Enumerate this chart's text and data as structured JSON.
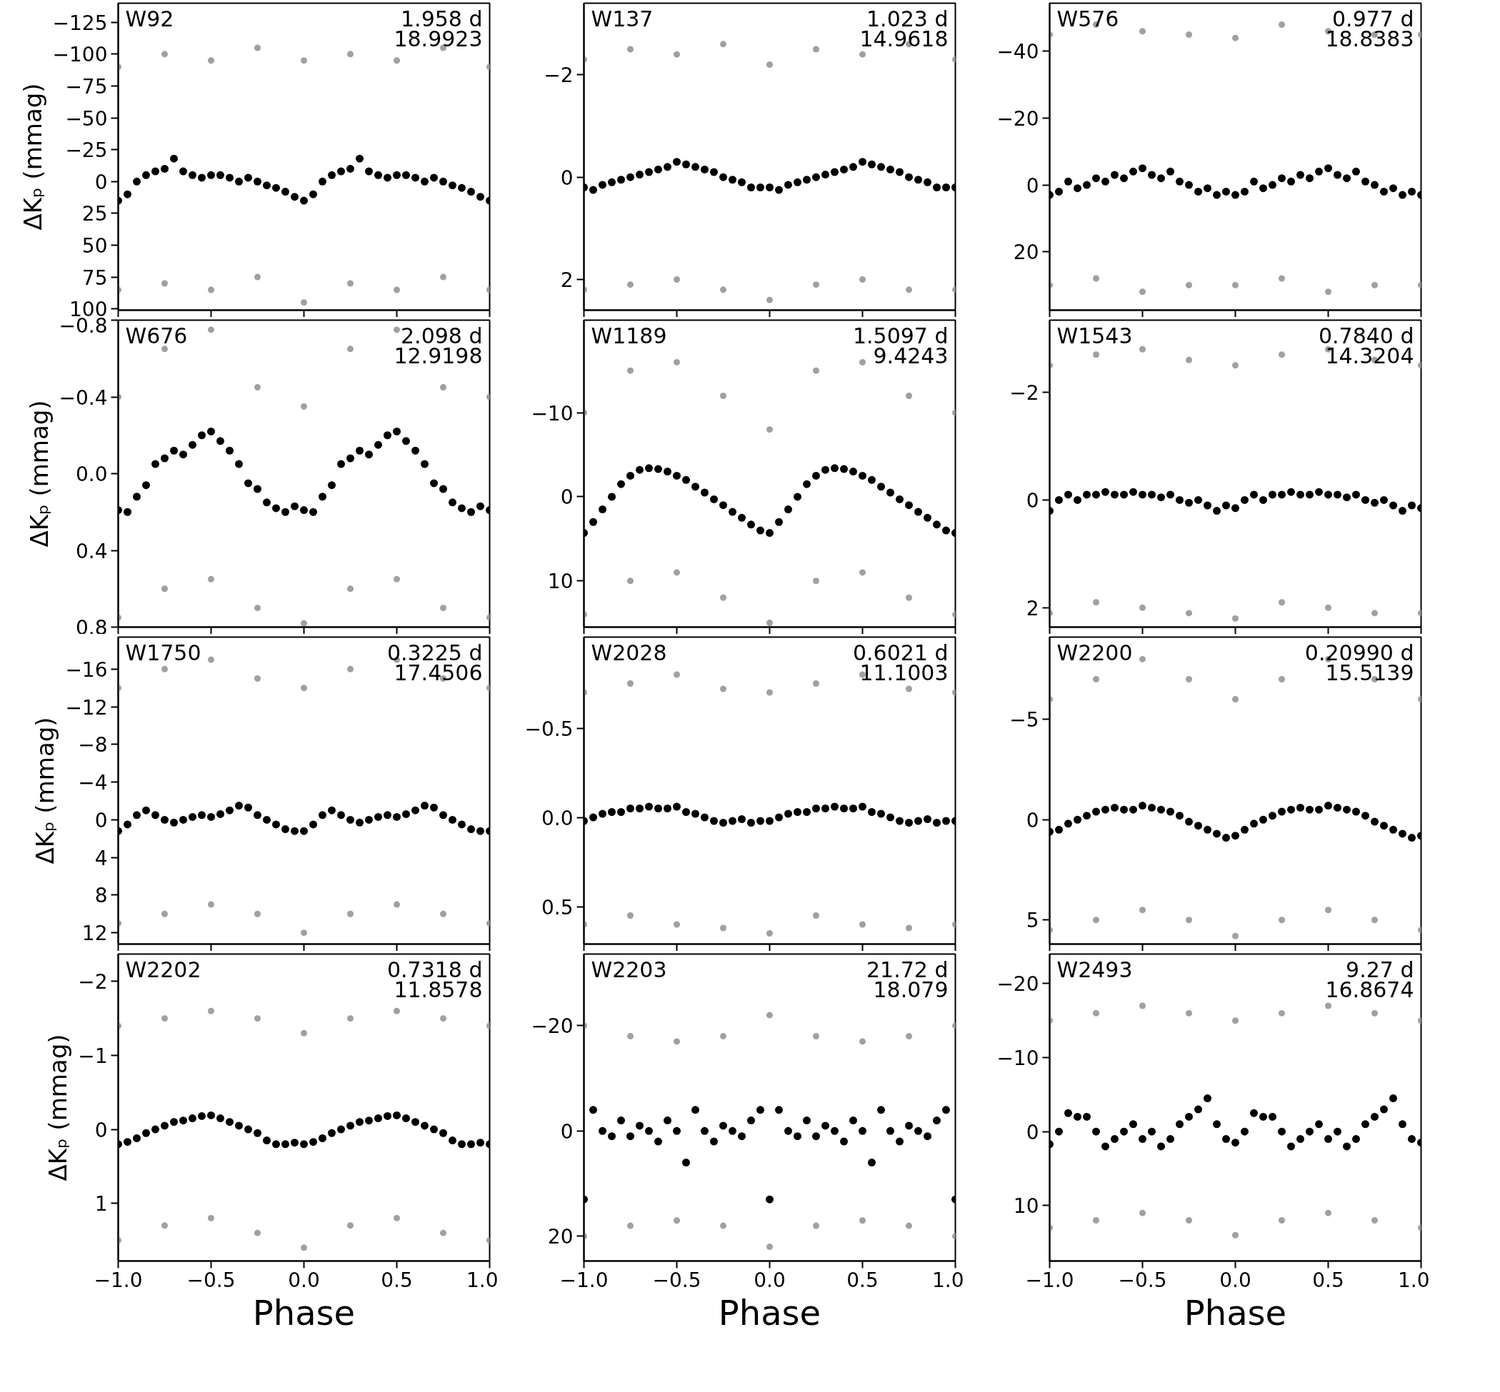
{
  "chart_data": [
    {
      "type": "scatter",
      "marker": "circle",
      "tick_labels": "y",
      "ylabel": "ΔKₚ (mmag)",
      "annotations": [
        "W92",
        "1.958 d",
        "18.9923"
      ],
      "xlim": [
        -1,
        1
      ],
      "ylim": [
        101,
        -140
      ],
      "xticks": [
        {
          "value": -1,
          "label": null
        },
        {
          "value": -0.5,
          "label": null
        },
        {
          "value": 0,
          "label": null
        },
        {
          "value": 0.5,
          "label": null
        },
        {
          "value": 1,
          "label": null
        }
      ],
      "yticks": [
        {
          "value": -125,
          "label": "−125"
        },
        {
          "value": -100,
          "label": "−100"
        },
        {
          "value": -75,
          "label": "−75"
        },
        {
          "value": -50,
          "label": "−50"
        },
        {
          "value": -25,
          "label": "−25"
        },
        0,
        25,
        50,
        75,
        100
      ],
      "series": [
        {
          "color": "#a0a0a0",
          "x": [
            -1,
            -0.75,
            -0.5,
            -0.25,
            0,
            0.25,
            0.5,
            0.75,
            1,
            -1,
            -0.75,
            -0.5,
            -0.25,
            0,
            0.25,
            0.5,
            0.75,
            1
          ],
          "values": [
            -90,
            -100,
            -95,
            -105,
            -95,
            -100,
            -95,
            -105,
            -90,
            85,
            80,
            85,
            75,
            95,
            80,
            85,
            75,
            85
          ]
        },
        {
          "color": "#000000",
          "x": [
            -1,
            -0.95,
            -0.9,
            -0.85,
            -0.8,
            -0.75,
            -0.7,
            -0.65,
            -0.6,
            -0.55,
            -0.5,
            -0.45,
            -0.4,
            -0.35,
            -0.3,
            -0.25,
            -0.2,
            -0.15,
            -0.1,
            -0.05,
            0,
            0.05,
            0.1,
            0.15,
            0.2,
            0.25,
            0.3,
            0.35,
            0.4,
            0.45,
            0.5,
            0.55,
            0.6,
            0.65,
            0.7,
            0.75,
            0.8,
            0.85,
            0.9,
            0.95,
            1
          ],
          "values": [
            15,
            10,
            0,
            -5,
            -8,
            -10,
            -18,
            -8,
            -5,
            -3,
            -5,
            -5,
            -3,
            0,
            -3,
            0,
            3,
            5,
            8,
            12,
            15,
            10,
            0,
            -5,
            -8,
            -10,
            -18,
            -8,
            -5,
            -3,
            -5,
            -5,
            -3,
            0,
            -3,
            0,
            3,
            5,
            8,
            12,
            15
          ]
        }
      ]
    },
    {
      "type": "scatter",
      "marker": "circle",
      "tick_labels": "y",
      "annotations": [
        "W137",
        "1.023 d",
        "14.9618"
      ],
      "xlim": [
        -1,
        1
      ],
      "ylim": [
        2.6,
        -3.4
      ],
      "xticks": [
        {
          "value": -1,
          "label": null
        },
        {
          "value": -0.5,
          "label": null
        },
        {
          "value": 0,
          "label": null
        },
        {
          "value": 0.5,
          "label": null
        },
        {
          "value": 1,
          "label": null
        }
      ],
      "yticks": [
        {
          "value": -2,
          "label": "−2"
        },
        0,
        2
      ],
      "series": [
        {
          "color": "#a0a0a0",
          "x": [
            -1,
            -0.75,
            -0.5,
            -0.25,
            0,
            0.25,
            0.5,
            0.75,
            1,
            -1,
            -0.75,
            -0.5,
            -0.25,
            0,
            0.25,
            0.5,
            0.75,
            1
          ],
          "values": [
            -2.3,
            -2.5,
            -2.4,
            -2.6,
            -2.2,
            -2.5,
            -2.4,
            -2.6,
            -2.3,
            2.2,
            2.1,
            2.0,
            2.2,
            2.4,
            2.1,
            2.0,
            2.2,
            2.2
          ]
        },
        {
          "color": "#000000",
          "x": [
            -1,
            -0.95,
            -0.9,
            -0.85,
            -0.8,
            -0.75,
            -0.7,
            -0.65,
            -0.6,
            -0.55,
            -0.5,
            -0.45,
            -0.4,
            -0.35,
            -0.3,
            -0.25,
            -0.2,
            -0.15,
            -0.1,
            -0.05,
            0,
            0.05,
            0.1,
            0.15,
            0.2,
            0.25,
            0.3,
            0.35,
            0.4,
            0.45,
            0.5,
            0.55,
            0.6,
            0.65,
            0.7,
            0.75,
            0.8,
            0.85,
            0.9,
            0.95,
            1
          ],
          "values": [
            0.2,
            0.25,
            0.15,
            0.1,
            0.05,
            0,
            -0.05,
            -0.1,
            -0.15,
            -0.2,
            -0.3,
            -0.25,
            -0.2,
            -0.15,
            -0.1,
            0,
            0.05,
            0.1,
            0.2,
            0.2,
            0.2,
            0.25,
            0.15,
            0.1,
            0.05,
            0,
            -0.05,
            -0.1,
            -0.15,
            -0.2,
            -0.3,
            -0.25,
            -0.2,
            -0.15,
            -0.1,
            0,
            0.05,
            0.1,
            0.2,
            0.2,
            0.2
          ]
        }
      ]
    },
    {
      "type": "scatter",
      "marker": "circle",
      "tick_labels": "y",
      "annotations": [
        "W576",
        "0.977 d",
        "18.8383"
      ],
      "xlim": [
        -1,
        1
      ],
      "ylim": [
        37.5,
        -54.4
      ],
      "xticks": [
        {
          "value": -1,
          "label": null
        },
        {
          "value": -0.5,
          "label": null
        },
        {
          "value": 0,
          "label": null
        },
        {
          "value": 0.5,
          "label": null
        },
        {
          "value": 1,
          "label": null
        }
      ],
      "yticks": [
        {
          "value": -40,
          "label": "−40"
        },
        {
          "value": -20,
          "label": "−20"
        },
        0,
        20
      ],
      "series": [
        {
          "color": "#a0a0a0",
          "x": [
            -1,
            -0.75,
            -0.5,
            -0.25,
            0,
            0.25,
            0.5,
            0.75,
            1,
            -1,
            -0.75,
            -0.5,
            -0.25,
            0,
            0.25,
            0.5,
            0.75,
            1
          ],
          "values": [
            -45,
            -48,
            -46,
            -45,
            -44,
            -48,
            -46,
            -45,
            -45,
            30,
            28,
            32,
            30,
            30,
            28,
            32,
            30,
            30
          ]
        },
        {
          "color": "#000000",
          "x": [
            -1,
            -0.95,
            -0.9,
            -0.85,
            -0.8,
            -0.75,
            -0.7,
            -0.65,
            -0.6,
            -0.55,
            -0.5,
            -0.45,
            -0.4,
            -0.35,
            -0.3,
            -0.25,
            -0.2,
            -0.15,
            -0.1,
            -0.05,
            0,
            0.05,
            0.1,
            0.15,
            0.2,
            0.25,
            0.3,
            0.35,
            0.4,
            0.45,
            0.5,
            0.55,
            0.6,
            0.65,
            0.7,
            0.75,
            0.8,
            0.85,
            0.9,
            0.95,
            1
          ],
          "values": [
            3,
            2,
            -1,
            1,
            0,
            -2,
            -1,
            -3,
            -2,
            -4,
            -5,
            -3,
            -2,
            -4,
            -1,
            0,
            2,
            1,
            3,
            2,
            3,
            2,
            -1,
            1,
            0,
            -2,
            -1,
            -3,
            -2,
            -4,
            -5,
            -3,
            -2,
            -4,
            -1,
            0,
            2,
            1,
            3,
            2,
            3
          ]
        }
      ]
    },
    {
      "type": "scatter",
      "marker": "circle",
      "tick_labels": "y",
      "ylabel": "ΔKₚ (mmag)",
      "annotations": [
        "W676",
        "2.098 d",
        "12.9198"
      ],
      "xlim": [
        -1,
        1
      ],
      "ylim": [
        0.8,
        -0.8
      ],
      "xticks": [
        {
          "value": -1,
          "label": null
        },
        {
          "value": -0.5,
          "label": null
        },
        {
          "value": 0,
          "label": null
        },
        {
          "value": 0.5,
          "label": null
        },
        {
          "value": 1,
          "label": null
        }
      ],
      "yticks": [
        {
          "value": -0.8,
          "label": "−0.8"
        },
        {
          "value": -0.4,
          "label": "−0.4"
        },
        {
          "value": 0,
          "label": "0.0"
        },
        0.4,
        0.8
      ],
      "series": [
        {
          "color": "#a0a0a0",
          "x": [
            -1,
            -0.75,
            -0.5,
            -0.25,
            0,
            0.25,
            0.5,
            0.75,
            1,
            -1,
            -0.75,
            -0.5,
            -0.25,
            0,
            0.25,
            0.5,
            0.75,
            1
          ],
          "values": [
            -0.4,
            -0.65,
            -0.75,
            -0.45,
            -0.35,
            -0.65,
            -0.75,
            -0.45,
            -0.4,
            0.75,
            0.6,
            0.55,
            0.7,
            0.78,
            0.6,
            0.55,
            0.7,
            0.75
          ]
        },
        {
          "color": "#000000",
          "x": [
            -1,
            -0.95,
            -0.9,
            -0.85,
            -0.8,
            -0.75,
            -0.7,
            -0.65,
            -0.6,
            -0.55,
            -0.5,
            -0.45,
            -0.4,
            -0.35,
            -0.3,
            -0.25,
            -0.2,
            -0.15,
            -0.1,
            -0.05,
            0,
            0.05,
            0.1,
            0.15,
            0.2,
            0.25,
            0.3,
            0.35,
            0.4,
            0.45,
            0.5,
            0.55,
            0.6,
            0.65,
            0.7,
            0.75,
            0.8,
            0.85,
            0.9,
            0.95,
            1
          ],
          "values": [
            0.19,
            0.2,
            0.12,
            0.06,
            -0.05,
            -0.08,
            -0.12,
            -0.1,
            -0.15,
            -0.2,
            -0.22,
            -0.17,
            -0.12,
            -0.05,
            0.05,
            0.08,
            0.15,
            0.18,
            0.2,
            0.17,
            0.19,
            0.2,
            0.12,
            0.06,
            -0.05,
            -0.08,
            -0.12,
            -0.1,
            -0.15,
            -0.2,
            -0.22,
            -0.17,
            -0.12,
            -0.05,
            0.05,
            0.08,
            0.15,
            0.18,
            0.2,
            0.17,
            0.19
          ]
        }
      ]
    },
    {
      "type": "scatter",
      "marker": "circle",
      "tick_labels": "y",
      "annotations": [
        "W1189",
        "1.5097 d",
        "9.4243"
      ],
      "xlim": [
        -1,
        1
      ],
      "ylim": [
        15.5,
        -21
      ],
      "xticks": [
        {
          "value": -1,
          "label": null
        },
        {
          "value": -0.5,
          "label": null
        },
        {
          "value": 0,
          "label": null
        },
        {
          "value": 0.5,
          "label": null
        },
        {
          "value": 1,
          "label": null
        }
      ],
      "yticks": [
        {
          "value": -10,
          "label": "−10"
        },
        0,
        10
      ],
      "series": [
        {
          "color": "#a0a0a0",
          "x": [
            -1,
            -0.75,
            -0.5,
            -0.25,
            0,
            0.25,
            0.5,
            0.75,
            1,
            -1,
            -0.75,
            -0.5,
            -0.25,
            0,
            0.25,
            0.5,
            0.75,
            1
          ],
          "values": [
            -10,
            -15,
            -16,
            -12,
            -8,
            -15,
            -16,
            -12,
            -10,
            14,
            10,
            9,
            12,
            15,
            10,
            9,
            12,
            14
          ]
        },
        {
          "color": "#000000",
          "x": [
            -1,
            -0.95,
            -0.9,
            -0.85,
            -0.8,
            -0.75,
            -0.7,
            -0.65,
            -0.6,
            -0.55,
            -0.5,
            -0.45,
            -0.4,
            -0.35,
            -0.3,
            -0.25,
            -0.2,
            -0.15,
            -0.1,
            -0.05,
            0,
            0.05,
            0.1,
            0.15,
            0.2,
            0.25,
            0.3,
            0.35,
            0.4,
            0.45,
            0.5,
            0.55,
            0.6,
            0.65,
            0.7,
            0.75,
            0.8,
            0.85,
            0.9,
            0.95,
            1
          ],
          "values": [
            4.3,
            3,
            1.5,
            0,
            -1.5,
            -2.5,
            -3.2,
            -3.4,
            -3.3,
            -3,
            -2.5,
            -2,
            -1.2,
            -0.5,
            0.3,
            1,
            1.8,
            2.5,
            3.3,
            4,
            4.3,
            3,
            1.5,
            0,
            -1.5,
            -2.5,
            -3.2,
            -3.4,
            -3.3,
            -3,
            -2.5,
            -2,
            -1.2,
            -0.5,
            0.3,
            1,
            1.8,
            2.5,
            3.3,
            4,
            4.3
          ]
        }
      ]
    },
    {
      "type": "scatter",
      "marker": "circle",
      "tick_labels": "y",
      "annotations": [
        "W1543",
        "0.7840 d",
        "14.3204"
      ],
      "xlim": [
        -1,
        1
      ],
      "ylim": [
        2.36,
        -3.34
      ],
      "xticks": [
        {
          "value": -1,
          "label": null
        },
        {
          "value": -0.5,
          "label": null
        },
        {
          "value": 0,
          "label": null
        },
        {
          "value": 0.5,
          "label": null
        },
        {
          "value": 1,
          "label": null
        }
      ],
      "yticks": [
        {
          "value": -2,
          "label": "−2"
        },
        0,
        2
      ],
      "series": [
        {
          "color": "#a0a0a0",
          "x": [
            -1,
            -0.75,
            -0.5,
            -0.25,
            0,
            0.25,
            0.5,
            0.75,
            1,
            -1,
            -0.75,
            -0.5,
            -0.25,
            0,
            0.25,
            0.5,
            0.75,
            1
          ],
          "values": [
            -2.5,
            -2.7,
            -2.8,
            -2.6,
            -2.5,
            -2.7,
            -2.8,
            -2.6,
            -2.5,
            2.1,
            1.9,
            2.0,
            2.1,
            2.2,
            1.9,
            2.0,
            2.1,
            2.1
          ]
        },
        {
          "color": "#000000",
          "x": [
            -1,
            -0.95,
            -0.9,
            -0.85,
            -0.8,
            -0.75,
            -0.7,
            -0.65,
            -0.6,
            -0.55,
            -0.5,
            -0.45,
            -0.4,
            -0.35,
            -0.3,
            -0.25,
            -0.2,
            -0.15,
            -0.1,
            -0.05,
            0,
            0.05,
            0.1,
            0.15,
            0.2,
            0.25,
            0.3,
            0.35,
            0.4,
            0.45,
            0.5,
            0.55,
            0.6,
            0.65,
            0.7,
            0.75,
            0.8,
            0.85,
            0.9,
            0.95,
            1
          ],
          "values": [
            0.2,
            0,
            -0.1,
            0,
            -0.1,
            -0.1,
            -0.15,
            -0.1,
            -0.1,
            -0.15,
            -0.1,
            -0.1,
            -0.05,
            -0.1,
            0,
            0.05,
            0,
            0.1,
            0.2,
            0.1,
            0.15,
            0,
            -0.1,
            0,
            -0.1,
            -0.1,
            -0.15,
            -0.1,
            -0.1,
            -0.15,
            -0.1,
            -0.1,
            -0.05,
            -0.1,
            0,
            0.05,
            0,
            0.1,
            0.2,
            0.1,
            0.15
          ]
        }
      ]
    },
    {
      "type": "scatter",
      "marker": "circle",
      "tick_labels": "y",
      "ylabel": "ΔKₚ (mmag)",
      "annotations": [
        "W1750",
        "0.3225 d",
        "17.4506"
      ],
      "xlim": [
        -1,
        1
      ],
      "ylim": [
        13.2,
        -19.4
      ],
      "xticks": [
        {
          "value": -1,
          "label": null
        },
        {
          "value": -0.5,
          "label": null
        },
        {
          "value": 0,
          "label": null
        },
        {
          "value": 0.5,
          "label": null
        },
        {
          "value": 1,
          "label": null
        }
      ],
      "yticks": [
        {
          "value": -16,
          "label": "−16"
        },
        {
          "value": -12,
          "label": "−12"
        },
        {
          "value": -8,
          "label": "−8"
        },
        {
          "value": -4,
          "label": "−4"
        },
        0,
        4,
        8,
        12
      ],
      "series": [
        {
          "color": "#a0a0a0",
          "x": [
            -1,
            -0.75,
            -0.5,
            -0.25,
            0,
            0.25,
            0.5,
            0.75,
            1,
            -1,
            -0.75,
            -0.5,
            -0.25,
            0,
            0.25,
            0.5,
            0.75,
            1
          ],
          "values": [
            -14,
            -16,
            -17,
            -15,
            -14,
            -16,
            -17,
            -15,
            -14,
            11,
            10,
            9,
            10,
            12,
            10,
            9,
            10,
            11
          ]
        },
        {
          "color": "#000000",
          "x": [
            -1,
            -0.95,
            -0.9,
            -0.85,
            -0.8,
            -0.75,
            -0.7,
            -0.65,
            -0.6,
            -0.55,
            -0.5,
            -0.45,
            -0.4,
            -0.35,
            -0.3,
            -0.25,
            -0.2,
            -0.15,
            -0.1,
            -0.05,
            0,
            0.05,
            0.1,
            0.15,
            0.2,
            0.25,
            0.3,
            0.35,
            0.4,
            0.45,
            0.5,
            0.55,
            0.6,
            0.65,
            0.7,
            0.75,
            0.8,
            0.85,
            0.9,
            0.95,
            1
          ],
          "values": [
            1.2,
            0.5,
            -0.5,
            -1,
            -0.5,
            0,
            0.3,
            0,
            -0.3,
            -0.5,
            -0.3,
            -0.6,
            -1,
            -1.5,
            -1.3,
            -0.5,
            0,
            0.5,
            1,
            1.2,
            1.2,
            0.5,
            -0.5,
            -1,
            -0.5,
            0,
            0.3,
            0,
            -0.3,
            -0.5,
            -0.3,
            -0.6,
            -1,
            -1.5,
            -1.3,
            -0.5,
            0,
            0.5,
            1,
            1.2,
            1.2
          ]
        }
      ]
    },
    {
      "type": "scatter",
      "marker": "circle",
      "tick_labels": "y",
      "annotations": [
        "W2028",
        "0.6021 d",
        "11.1003"
      ],
      "xlim": [
        -1,
        1
      ],
      "ylim": [
        0.71,
        -1.01
      ],
      "xticks": [
        {
          "value": -1,
          "label": null
        },
        {
          "value": -0.5,
          "label": null
        },
        {
          "value": 0,
          "label": null
        },
        {
          "value": 0.5,
          "label": null
        },
        {
          "value": 1,
          "label": null
        }
      ],
      "yticks": [
        {
          "value": -0.5,
          "label": "−0.5"
        },
        {
          "value": 0,
          "label": "0.0"
        },
        0.5
      ],
      "series": [
        {
          "color": "#a0a0a0",
          "x": [
            -1,
            -0.75,
            -0.5,
            -0.25,
            0,
            0.25,
            0.5,
            0.75,
            1,
            -1,
            -0.75,
            -0.5,
            -0.25,
            0,
            0.25,
            0.5,
            0.75,
            1
          ],
          "values": [
            -0.7,
            -0.75,
            -0.8,
            -0.72,
            -0.7,
            -0.75,
            -0.8,
            -0.72,
            -0.7,
            0.6,
            0.55,
            0.6,
            0.62,
            0.65,
            0.55,
            0.6,
            0.62,
            0.6
          ]
        },
        {
          "color": "#000000",
          "x": [
            -1,
            -0.95,
            -0.9,
            -0.85,
            -0.8,
            -0.75,
            -0.7,
            -0.65,
            -0.6,
            -0.55,
            -0.5,
            -0.45,
            -0.4,
            -0.35,
            -0.3,
            -0.25,
            -0.2,
            -0.15,
            -0.1,
            -0.05,
            0,
            0.05,
            0.1,
            0.15,
            0.2,
            0.25,
            0.3,
            0.35,
            0.4,
            0.45,
            0.5,
            0.55,
            0.6,
            0.65,
            0.7,
            0.75,
            0.8,
            0.85,
            0.9,
            0.95,
            1
          ],
          "values": [
            0.02,
            0,
            -0.02,
            -0.03,
            -0.03,
            -0.05,
            -0.05,
            -0.06,
            -0.05,
            -0.05,
            -0.06,
            -0.03,
            -0.02,
            0,
            0.02,
            0.03,
            0.02,
            0.01,
            0.03,
            0.02,
            0.02,
            0,
            -0.02,
            -0.03,
            -0.03,
            -0.05,
            -0.05,
            -0.06,
            -0.05,
            -0.05,
            -0.06,
            -0.03,
            -0.02,
            0,
            0.02,
            0.03,
            0.02,
            0.01,
            0.03,
            0.02,
            0.02
          ]
        }
      ]
    },
    {
      "type": "scatter",
      "marker": "circle",
      "tick_labels": "y",
      "annotations": [
        "W2200",
        "0.20990 d",
        "15.5139"
      ],
      "xlim": [
        -1,
        1
      ],
      "ylim": [
        6.2,
        -9.1
      ],
      "xticks": [
        {
          "value": -1,
          "label": null
        },
        {
          "value": -0.5,
          "label": null
        },
        {
          "value": 0,
          "label": null
        },
        {
          "value": 0.5,
          "label": null
        },
        {
          "value": 1,
          "label": null
        }
      ],
      "yticks": [
        {
          "value": -5,
          "label": "−5"
        },
        0,
        5
      ],
      "series": [
        {
          "color": "#a0a0a0",
          "x": [
            -1,
            -0.75,
            -0.5,
            -0.25,
            0,
            0.25,
            0.5,
            0.75,
            1,
            -1,
            -0.75,
            -0.5,
            -0.25,
            0,
            0.25,
            0.5,
            0.75,
            1
          ],
          "values": [
            -6,
            -7,
            -8,
            -7,
            -6,
            -7,
            -8,
            -7,
            -6,
            5.5,
            5,
            4.5,
            5,
            5.8,
            5,
            4.5,
            5,
            5.5
          ]
        },
        {
          "color": "#000000",
          "x": [
            -1,
            -0.95,
            -0.9,
            -0.85,
            -0.8,
            -0.75,
            -0.7,
            -0.65,
            -0.6,
            -0.55,
            -0.5,
            -0.45,
            -0.4,
            -0.35,
            -0.3,
            -0.25,
            -0.2,
            -0.15,
            -0.1,
            -0.05,
            0,
            0.05,
            0.1,
            0.15,
            0.2,
            0.25,
            0.3,
            0.35,
            0.4,
            0.45,
            0.5,
            0.55,
            0.6,
            0.65,
            0.7,
            0.75,
            0.8,
            0.85,
            0.9,
            0.95,
            1
          ],
          "values": [
            0.6,
            0.5,
            0.2,
            0,
            -0.2,
            -0.4,
            -0.5,
            -0.6,
            -0.5,
            -0.5,
            -0.7,
            -0.6,
            -0.5,
            -0.4,
            -0.2,
            0.1,
            0.3,
            0.5,
            0.7,
            0.9,
            0.8,
            0.5,
            0.2,
            0,
            -0.2,
            -0.4,
            -0.5,
            -0.6,
            -0.5,
            -0.5,
            -0.7,
            -0.6,
            -0.5,
            -0.4,
            -0.2,
            0.1,
            0.3,
            0.5,
            0.7,
            0.9,
            0.8
          ]
        }
      ]
    },
    {
      "type": "scatter",
      "marker": "circle",
      "xlabel": "Phase",
      "ylabel": "ΔKₚ (mmag)",
      "annotations": [
        "W2202",
        "0.7318 d",
        "11.8578"
      ],
      "xlim": [
        -1,
        1
      ],
      "ylim": [
        1.78,
        -2.37
      ],
      "xticks": [
        {
          "value": -1,
          "label": "−1.0"
        },
        {
          "value": -0.5,
          "label": "−0.5"
        },
        {
          "value": 0,
          "label": "0.0"
        },
        {
          "value": 0.5,
          "label": "0.5"
        },
        {
          "value": 1,
          "label": "1.0"
        }
      ],
      "yticks": [
        {
          "value": -2,
          "label": "−2"
        },
        {
          "value": -1,
          "label": "−1"
        },
        0,
        1
      ],
      "series": [
        {
          "color": "#a0a0a0",
          "x": [
            -1,
            -0.75,
            -0.5,
            -0.25,
            0,
            0.25,
            0.5,
            0.75,
            1,
            -1,
            -0.75,
            -0.5,
            -0.25,
            0,
            0.25,
            0.5,
            0.75,
            1
          ],
          "values": [
            -1.4,
            -1.5,
            -1.6,
            -1.5,
            -1.3,
            -1.5,
            -1.6,
            -1.5,
            -1.4,
            1.5,
            1.3,
            1.2,
            1.4,
            1.6,
            1.3,
            1.2,
            1.4,
            1.5
          ]
        },
        {
          "color": "#000000",
          "x": [
            -1,
            -0.95,
            -0.9,
            -0.85,
            -0.8,
            -0.75,
            -0.7,
            -0.65,
            -0.6,
            -0.55,
            -0.5,
            -0.45,
            -0.4,
            -0.35,
            -0.3,
            -0.25,
            -0.2,
            -0.15,
            -0.1,
            -0.05,
            0,
            0.05,
            0.1,
            0.15,
            0.2,
            0.25,
            0.3,
            0.35,
            0.4,
            0.45,
            0.5,
            0.55,
            0.6,
            0.65,
            0.7,
            0.75,
            0.8,
            0.85,
            0.9,
            0.95,
            1
          ],
          "values": [
            0.2,
            0.17,
            0.12,
            0.05,
            0,
            -0.05,
            -0.1,
            -0.12,
            -0.15,
            -0.18,
            -0.19,
            -0.15,
            -0.1,
            -0.05,
            0,
            0.05,
            0.15,
            0.2,
            0.2,
            0.18,
            0.2,
            0.17,
            0.12,
            0.05,
            0,
            -0.05,
            -0.1,
            -0.12,
            -0.15,
            -0.18,
            -0.19,
            -0.15,
            -0.1,
            -0.05,
            0,
            0.05,
            0.15,
            0.2,
            0.2,
            0.18,
            0.2
          ]
        }
      ]
    },
    {
      "type": "scatter",
      "marker": "circle",
      "xlabel": "Phase",
      "annotations": [
        "W2203",
        "21.72 d",
        "18.079"
      ],
      "xlim": [
        -1,
        1
      ],
      "ylim": [
        24.7,
        -33.6
      ],
      "xticks": [
        {
          "value": -1,
          "label": "−1.0"
        },
        {
          "value": -0.5,
          "label": "−0.5"
        },
        {
          "value": 0,
          "label": "0.0"
        },
        {
          "value": 0.5,
          "label": "0.5"
        },
        {
          "value": 1,
          "label": "1.0"
        }
      ],
      "yticks": [
        {
          "value": -20,
          "label": "−20"
        },
        0,
        20
      ],
      "series": [
        {
          "color": "#a0a0a0",
          "x": [
            -1,
            -0.75,
            -0.5,
            -0.25,
            0,
            0.25,
            0.5,
            0.75,
            1,
            -1,
            -0.75,
            -0.5,
            -0.25,
            0,
            0.25,
            0.5,
            0.75,
            1
          ],
          "values": [
            -20,
            -18,
            -17,
            -18,
            -22,
            -18,
            -17,
            -18,
            -20,
            20,
            18,
            17,
            18,
            22,
            18,
            17,
            18,
            20
          ]
        },
        {
          "color": "#000000",
          "x": [
            -1,
            -0.95,
            -0.9,
            -0.85,
            -0.8,
            -0.75,
            -0.7,
            -0.65,
            -0.6,
            -0.55,
            -0.5,
            -0.45,
            -0.4,
            -0.35,
            -0.3,
            -0.25,
            -0.2,
            -0.15,
            -0.1,
            -0.05,
            0,
            0.05,
            0.1,
            0.15,
            0.2,
            0.25,
            0.3,
            0.35,
            0.4,
            0.45,
            0.5,
            0.55,
            0.6,
            0.65,
            0.7,
            0.75,
            0.8,
            0.85,
            0.9,
            0.95,
            1
          ],
          "values": [
            13,
            -4,
            0,
            1,
            -2,
            1,
            -1,
            0,
            2,
            -2,
            0,
            6,
            -4,
            0,
            2,
            -1,
            0,
            1,
            -2,
            -4,
            13,
            -4,
            0,
            1,
            -2,
            1,
            -1,
            0,
            2,
            -2,
            0,
            6,
            -4,
            0,
            2,
            -1,
            0,
            1,
            -2,
            -4,
            13
          ]
        }
      ]
    },
    {
      "type": "scatter",
      "marker": "circle",
      "xlabel": "Phase",
      "annotations": [
        "W2493",
        "9.27 d",
        "16.8674"
      ],
      "xlim": [
        -1,
        1
      ],
      "ylim": [
        17.5,
        -24
      ],
      "xticks": [
        {
          "value": -1,
          "label": "−1.0"
        },
        {
          "value": -0.5,
          "label": "−0.5"
        },
        {
          "value": 0,
          "label": "0.0"
        },
        {
          "value": 0.5,
          "label": "0.5"
        },
        {
          "value": 1,
          "label": "1.0"
        }
      ],
      "yticks": [
        {
          "value": -20,
          "label": "−20"
        },
        {
          "value": -10,
          "label": "−10"
        },
        0,
        10
      ],
      "series": [
        {
          "color": "#a0a0a0",
          "x": [
            -1,
            -0.75,
            -0.5,
            -0.25,
            0,
            0.25,
            0.5,
            0.75,
            1,
            -1,
            -0.75,
            -0.5,
            -0.25,
            0,
            0.25,
            0.5,
            0.75,
            1
          ],
          "values": [
            -15,
            -16,
            -17,
            -16,
            -15,
            -16,
            -17,
            -16,
            -15,
            13,
            12,
            11,
            12,
            14,
            12,
            11,
            12,
            13
          ]
        },
        {
          "color": "#000000",
          "x": [
            -1,
            -0.95,
            -0.9,
            -0.85,
            -0.8,
            -0.75,
            -0.7,
            -0.65,
            -0.6,
            -0.55,
            -0.5,
            -0.45,
            -0.4,
            -0.35,
            -0.3,
            -0.25,
            -0.2,
            -0.15,
            -0.1,
            -0.05,
            0,
            0.05,
            0.1,
            0.15,
            0.2,
            0.25,
            0.3,
            0.35,
            0.4,
            0.45,
            0.5,
            0.55,
            0.6,
            0.65,
            0.7,
            0.75,
            0.8,
            0.85,
            0.9,
            0.95,
            1
          ],
          "values": [
            1.7,
            0,
            -2.5,
            -2,
            -2,
            0,
            2,
            1,
            0,
            -1,
            1,
            0,
            2,
            1,
            -1,
            -2,
            -3,
            -4.5,
            -1,
            1,
            1.5,
            0,
            -2.5,
            -2,
            -2,
            0,
            2,
            1,
            0,
            -1,
            1,
            0,
            2,
            1,
            -1,
            -2,
            -3,
            -4.5,
            -1,
            1,
            1.5
          ]
        }
      ]
    }
  ]
}
